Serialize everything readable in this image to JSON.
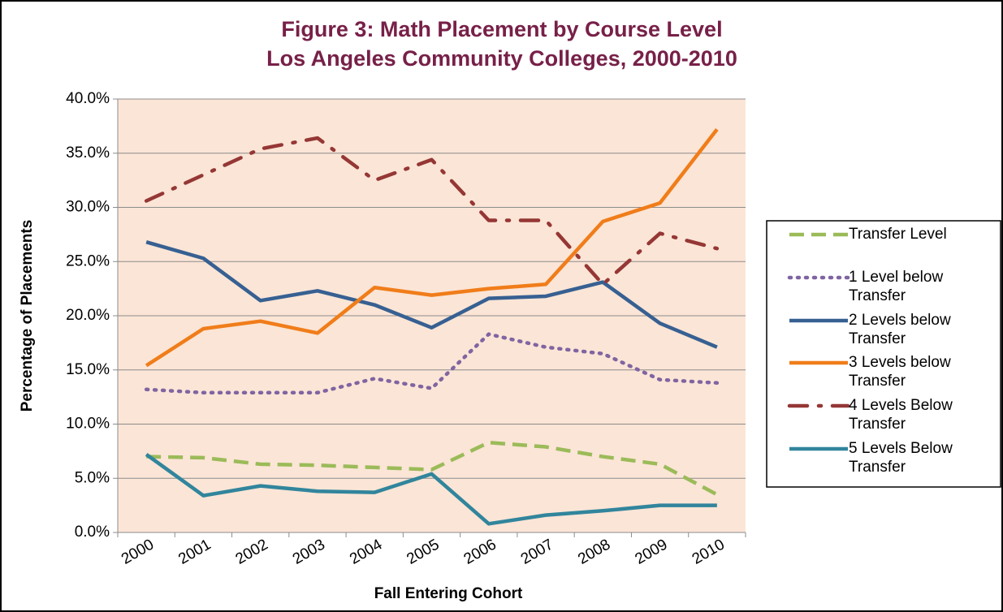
{
  "chart_data": {
    "type": "line",
    "title": "Figure 3: Math Placement by Course Level",
    "subtitle": "Los Angeles Community Colleges, 2000-2010",
    "x_label": "Fall Entering Cohort",
    "y_label": "Percentage of Placements",
    "categories": [
      "2000",
      "2001",
      "2002",
      "2003",
      "2004",
      "2005",
      "2006",
      "2007",
      "2008",
      "2009",
      "2010"
    ],
    "ylim": [
      0,
      40
    ],
    "yticks": [
      {
        "value": 0,
        "label": "0.0%"
      },
      {
        "value": 5,
        "label": "5.0%"
      },
      {
        "value": 10,
        "label": "10.0%"
      },
      {
        "value": 15,
        "label": "15.0%"
      },
      {
        "value": 20,
        "label": "20.0%"
      },
      {
        "value": 25,
        "label": "25.0%"
      },
      {
        "value": 30,
        "label": "30.0%"
      },
      {
        "value": 35,
        "label": "35.0%"
      },
      {
        "value": 40,
        "label": "40.0%"
      }
    ],
    "grid": true,
    "legend": "right",
    "series": [
      {
        "name": "Transfer Level",
        "color": "#9bbb59",
        "style": "dashed",
        "values": [
          7.0,
          6.9,
          6.3,
          6.2,
          6.0,
          5.8,
          8.3,
          7.9,
          7.0,
          6.3,
          3.5
        ]
      },
      {
        "name": "1 Level  below Transfer",
        "color": "#8064a2",
        "style": "dotted",
        "values": [
          13.2,
          12.9,
          12.9,
          12.9,
          14.2,
          13.3,
          18.3,
          17.1,
          16.5,
          14.1,
          13.8
        ]
      },
      {
        "name": "2 Levels below Transfer",
        "color": "#376092",
        "style": "solid",
        "values": [
          26.8,
          25.3,
          21.4,
          22.3,
          21.0,
          18.9,
          21.6,
          21.8,
          23.1,
          19.3,
          17.1
        ]
      },
      {
        "name": "3 Levels below Transfer",
        "color": "#f07d1a",
        "style": "solid",
        "values": [
          15.4,
          18.8,
          19.5,
          18.4,
          22.6,
          21.9,
          22.5,
          22.9,
          28.7,
          30.4,
          37.2
        ]
      },
      {
        "name": "4 Levels Below Transfer",
        "color": "#953735",
        "style": "dashdot",
        "values": [
          30.6,
          33.0,
          35.4,
          36.4,
          32.5,
          34.4,
          28.8,
          28.8,
          22.9,
          27.6,
          26.2
        ]
      },
      {
        "name": "5 Levels Below Transfer",
        "color": "#31859c",
        "style": "solid",
        "values": [
          7.2,
          3.4,
          4.3,
          3.8,
          3.7,
          5.4,
          0.8,
          1.6,
          2.0,
          2.5,
          2.5
        ]
      }
    ]
  }
}
